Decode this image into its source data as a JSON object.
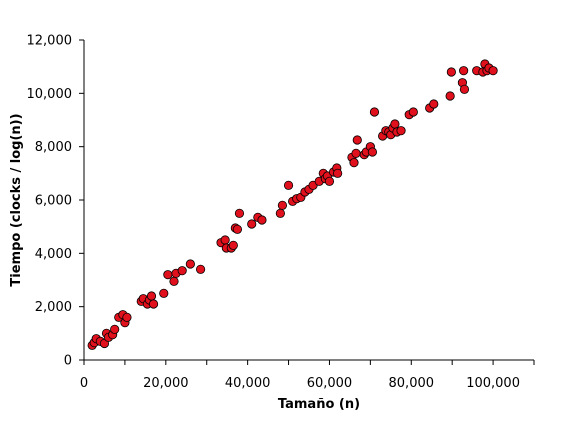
{
  "chart_data": {
    "type": "scatter",
    "title": "",
    "xlabel": "Tamaño (n)",
    "ylabel": "Tiempo (clocks / log(n))",
    "xlim": [
      0,
      110000
    ],
    "ylim": [
      0,
      12000
    ],
    "x_ticks": [
      0,
      20000,
      40000,
      60000,
      80000,
      100000
    ],
    "x_tick_labels": [
      "0",
      "20,000",
      "40,000",
      "60,000",
      "80,000",
      "100,000"
    ],
    "x_minor_step": 10000,
    "y_ticks": [
      0,
      2000,
      4000,
      6000,
      8000,
      10000,
      12000
    ],
    "y_tick_labels": [
      "0",
      "2,000",
      "4,000",
      "6,000",
      "8,000",
      "10,000",
      "12,000"
    ],
    "grid": false,
    "marker_color": "#e0101c",
    "series": [
      {
        "points": [
          [
            2000,
            550
          ],
          [
            2500,
            650
          ],
          [
            3000,
            800
          ],
          [
            4000,
            700
          ],
          [
            5000,
            620
          ],
          [
            5500,
            1000
          ],
          [
            6000,
            850
          ],
          [
            7000,
            950
          ],
          [
            7500,
            1150
          ],
          [
            8500,
            1600
          ],
          [
            9500,
            1700
          ],
          [
            10000,
            1400
          ],
          [
            10500,
            1600
          ],
          [
            14000,
            2200
          ],
          [
            14500,
            2300
          ],
          [
            15500,
            2100
          ],
          [
            16000,
            2250
          ],
          [
            16500,
            2400
          ],
          [
            17000,
            2100
          ],
          [
            19500,
            2500
          ],
          [
            20500,
            3200
          ],
          [
            22000,
            2950
          ],
          [
            22500,
            3250
          ],
          [
            24000,
            3350
          ],
          [
            26000,
            3600
          ],
          [
            28500,
            3400
          ],
          [
            33500,
            4400
          ],
          [
            34500,
            4500
          ],
          [
            34800,
            4200
          ],
          [
            36000,
            4200
          ],
          [
            36500,
            4300
          ],
          [
            37000,
            4950
          ],
          [
            37500,
            4900
          ],
          [
            38000,
            5500
          ],
          [
            41000,
            5100
          ],
          [
            42500,
            5350
          ],
          [
            43500,
            5250
          ],
          [
            48000,
            5500
          ],
          [
            48500,
            5800
          ],
          [
            50000,
            6550
          ],
          [
            51000,
            5950
          ],
          [
            52000,
            6050
          ],
          [
            53000,
            6100
          ],
          [
            54000,
            6300
          ],
          [
            55000,
            6400
          ],
          [
            56000,
            6550
          ],
          [
            57500,
            6700
          ],
          [
            58500,
            7000
          ],
          [
            59000,
            6800
          ],
          [
            59500,
            6900
          ],
          [
            60000,
            6700
          ],
          [
            61000,
            7050
          ],
          [
            61800,
            7200
          ],
          [
            62000,
            7000
          ],
          [
            65500,
            7600
          ],
          [
            66000,
            7400
          ],
          [
            66500,
            7750
          ],
          [
            66800,
            8250
          ],
          [
            68500,
            7700
          ],
          [
            69000,
            7800
          ],
          [
            70000,
            8000
          ],
          [
            70500,
            7800
          ],
          [
            71000,
            9300
          ],
          [
            73000,
            8400
          ],
          [
            73800,
            8600
          ],
          [
            74500,
            8550
          ],
          [
            75000,
            8450
          ],
          [
            75500,
            8700
          ],
          [
            76000,
            8850
          ],
          [
            76500,
            8550
          ],
          [
            77500,
            8600
          ],
          [
            79500,
            9200
          ],
          [
            80500,
            9300
          ],
          [
            84500,
            9450
          ],
          [
            85500,
            9600
          ],
          [
            89500,
            9900
          ],
          [
            89800,
            10800
          ],
          [
            92500,
            10400
          ],
          [
            92800,
            10850
          ],
          [
            93000,
            10150
          ],
          [
            96000,
            10850
          ],
          [
            97500,
            10800
          ],
          [
            98000,
            11100
          ],
          [
            98500,
            10850
          ],
          [
            99000,
            10950
          ],
          [
            100000,
            10850
          ]
        ]
      }
    ]
  }
}
